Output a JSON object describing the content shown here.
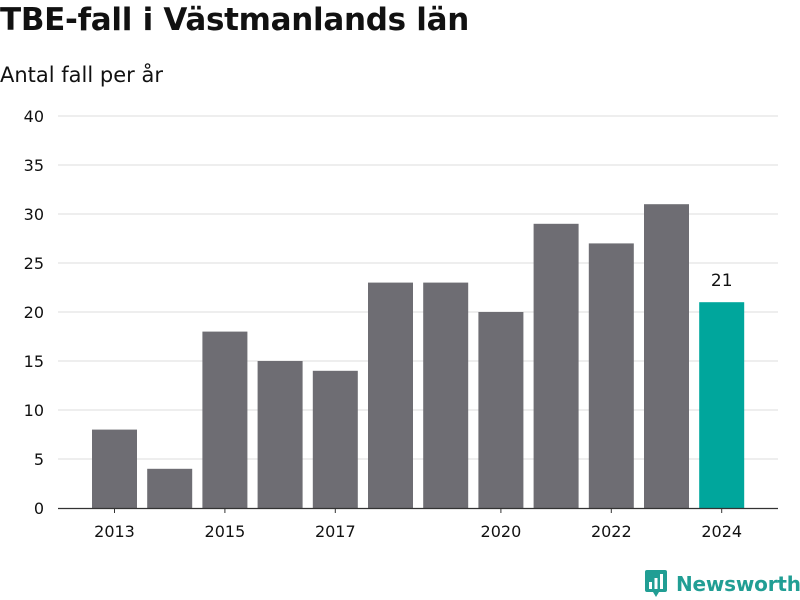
{
  "header": {
    "title": "TBE-fall i Västmanlands län",
    "subtitle": "Antal fall per år"
  },
  "brand": {
    "name": "Newsworthy",
    "color": "#219e94"
  },
  "colors": {
    "bar": "#6e6d73",
    "highlight": "#00a69c",
    "grid": "#dddddd",
    "axis": "#333333",
    "text": "#111111"
  },
  "chart_data": {
    "type": "bar",
    "title": "TBE-fall i Västmanlands län",
    "subtitle": "Antal fall per år",
    "xlabel": "",
    "ylabel": "",
    "categories": [
      2013,
      2014,
      2015,
      2016,
      2017,
      2018,
      2019,
      2020,
      2021,
      2022,
      2023,
      2024
    ],
    "values": [
      8,
      4,
      18,
      15,
      14,
      23,
      23,
      20,
      29,
      27,
      31,
      21
    ],
    "highlight_index": 11,
    "highlight_label": "21",
    "xticks": [
      2013,
      2015,
      2017,
      2020,
      2022,
      2024
    ],
    "yticks": [
      0,
      5,
      10,
      15,
      20,
      25,
      30,
      35,
      40
    ],
    "ylim": [
      0,
      40
    ],
    "grid": true,
    "legend": "none"
  }
}
